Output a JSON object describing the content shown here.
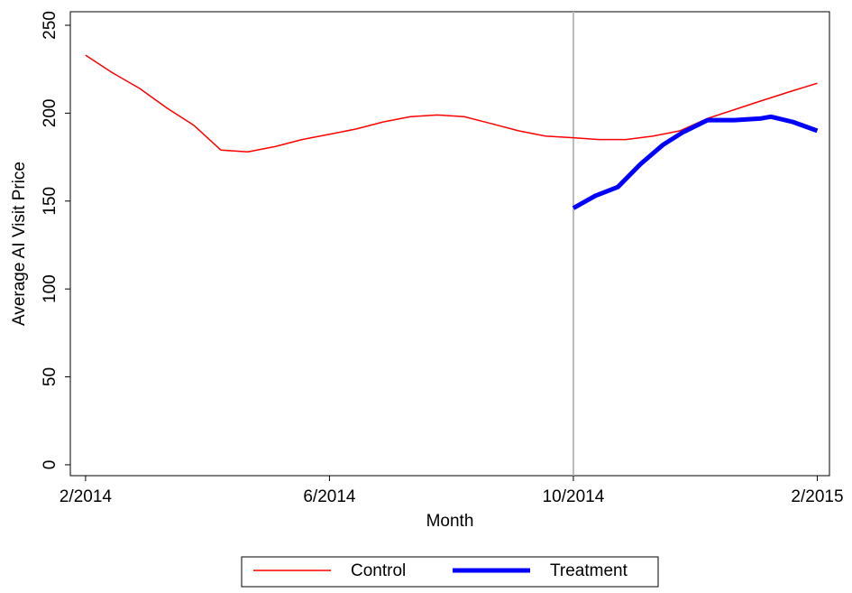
{
  "chart_data": {
    "type": "line",
    "x_label": "Month",
    "y_label": "Average AI Visit Price",
    "xlim": [
      -0.25,
      12.2
    ],
    "ylim": [
      -6.2,
      257.7
    ],
    "xticks": [
      {
        "value": 0,
        "label": "2/2014"
      },
      {
        "value": 4,
        "label": "6/2014"
      },
      {
        "value": 8,
        "label": "10/2014"
      },
      {
        "value": 12,
        "label": "2/2015"
      }
    ],
    "yticks": [
      0,
      50,
      100,
      150,
      200,
      250
    ],
    "vline": 8,
    "vline_color": "#bbbbbb",
    "legend": "bottom",
    "series": [
      {
        "name": "Control",
        "color": "#ff0000",
        "width": 1.5,
        "x": [
          0,
          0.44,
          0.89,
          1.33,
          1.78,
          2.22,
          2.66,
          3.11,
          3.55,
          4,
          4.44,
          4.88,
          5.33,
          5.77,
          6.21,
          6.66,
          7.1,
          7.54,
          8,
          8.42,
          8.86,
          9.31,
          9.75,
          10.2,
          10.64,
          11.08,
          11.53,
          12
        ],
        "values": [
          233,
          223,
          214,
          203,
          193,
          179,
          178,
          181,
          185,
          188,
          191,
          195,
          198,
          199,
          198,
          194,
          190,
          187,
          186,
          185,
          185,
          187,
          190,
          197,
          202,
          207,
          212,
          217
        ]
      },
      {
        "name": "Treatment",
        "color": "#0000ff",
        "width": 5,
        "x": [
          8,
          8.36,
          8.73,
          9.1,
          9.47,
          9.79,
          10.2,
          10.64,
          11.08,
          11.24,
          11.6,
          12
        ],
        "values": [
          146,
          153,
          158,
          171,
          182,
          189,
          196,
          196,
          197,
          198,
          195,
          190
        ]
      }
    ]
  }
}
